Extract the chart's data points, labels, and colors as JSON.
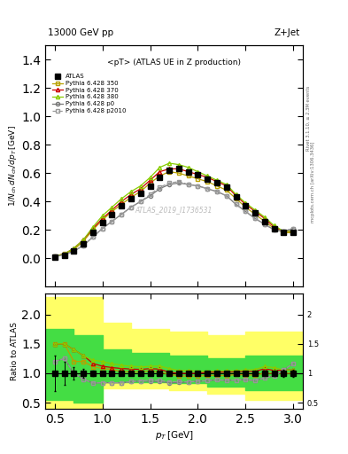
{
  "title_top": "13000 GeV pp",
  "title_right": "Z+Jet",
  "subplot_title": "<pT> (ATLAS UE in Z production)",
  "watermark": "ATLAS_2019_I1736531",
  "right_label_top": "Rivet 3.1.10, ≥ 2.3M events",
  "right_label_bottom": "mcplots.cern.ch [arXiv:1306.3436]",
  "ylabel_main": "1/N_{ch} dN_{ch}/dp_{T} [GeV]",
  "ylabel_ratio": "Ratio to ATLAS",
  "xlabel": "p_{T} [GeV]",
  "xlim": [
    0.4,
    3.1
  ],
  "ylim_main": [
    -0.2,
    1.5
  ],
  "ylim_ratio": [
    0.4,
    2.35
  ],
  "atlas_x": [
    0.5,
    0.6,
    0.7,
    0.8,
    0.9,
    1.0,
    1.1,
    1.2,
    1.3,
    1.4,
    1.5,
    1.6,
    1.7,
    1.8,
    1.9,
    2.0,
    2.1,
    2.2,
    2.3,
    2.4,
    2.5,
    2.6,
    2.7,
    2.8,
    2.9,
    3.0
  ],
  "atlas_y": [
    0.01,
    0.02,
    0.05,
    0.1,
    0.18,
    0.25,
    0.31,
    0.37,
    0.42,
    0.46,
    0.51,
    0.57,
    0.62,
    0.63,
    0.61,
    0.59,
    0.56,
    0.53,
    0.5,
    0.43,
    0.37,
    0.32,
    0.26,
    0.21,
    0.18,
    0.18
  ],
  "atlas_yerr": [
    0.003,
    0.004,
    0.005,
    0.007,
    0.008,
    0.009,
    0.01,
    0.01,
    0.01,
    0.01,
    0.01,
    0.01,
    0.01,
    0.01,
    0.01,
    0.01,
    0.01,
    0.01,
    0.01,
    0.01,
    0.01,
    0.01,
    0.01,
    0.01,
    0.01,
    0.01
  ],
  "p350_y": [
    0.015,
    0.03,
    0.06,
    0.12,
    0.2,
    0.27,
    0.33,
    0.38,
    0.43,
    0.47,
    0.53,
    0.58,
    0.61,
    0.6,
    0.58,
    0.56,
    0.54,
    0.51,
    0.48,
    0.42,
    0.36,
    0.31,
    0.26,
    0.21,
    0.18,
    0.18
  ],
  "p370_y": [
    0.015,
    0.03,
    0.07,
    0.13,
    0.21,
    0.28,
    0.34,
    0.4,
    0.45,
    0.49,
    0.55,
    0.61,
    0.63,
    0.63,
    0.61,
    0.59,
    0.57,
    0.54,
    0.51,
    0.44,
    0.38,
    0.33,
    0.28,
    0.22,
    0.19,
    0.19
  ],
  "p380_y": [
    0.015,
    0.03,
    0.07,
    0.13,
    0.22,
    0.3,
    0.36,
    0.42,
    0.47,
    0.51,
    0.57,
    0.64,
    0.67,
    0.66,
    0.64,
    0.61,
    0.58,
    0.55,
    0.52,
    0.45,
    0.39,
    0.34,
    0.29,
    0.23,
    0.19,
    0.19
  ],
  "p0_y": [
    0.012,
    0.025,
    0.05,
    0.09,
    0.15,
    0.21,
    0.26,
    0.31,
    0.36,
    0.4,
    0.44,
    0.49,
    0.52,
    0.53,
    0.52,
    0.51,
    0.49,
    0.47,
    0.44,
    0.38,
    0.33,
    0.28,
    0.24,
    0.2,
    0.19,
    0.21
  ],
  "p2010_y": [
    0.012,
    0.025,
    0.05,
    0.09,
    0.15,
    0.21,
    0.26,
    0.31,
    0.36,
    0.4,
    0.45,
    0.5,
    0.53,
    0.54,
    0.52,
    0.51,
    0.49,
    0.47,
    0.44,
    0.38,
    0.33,
    0.28,
    0.24,
    0.2,
    0.19,
    0.21
  ],
  "color_p350": "#b8a000",
  "color_p370": "#cc0000",
  "color_p380": "#88cc00",
  "color_p0": "#777777",
  "color_p2010": "#999999",
  "color_atlas": "#000000",
  "band_yellow_color": "#ffff66",
  "band_green_color": "#44dd44",
  "bx": [
    0.4,
    0.7,
    0.7,
    1.0,
    1.0,
    1.3,
    1.3,
    1.7,
    1.7,
    2.1,
    2.1,
    2.5,
    2.5,
    3.1
  ],
  "by_ylo": [
    0.3,
    0.3,
    0.25,
    0.25,
    0.75,
    0.75,
    0.75,
    0.75,
    0.72,
    0.72,
    0.65,
    0.65,
    0.55,
    0.55
  ],
  "by_yhi": [
    2.3,
    2.3,
    2.3,
    2.3,
    1.85,
    1.85,
    1.75,
    1.75,
    1.7,
    1.7,
    1.65,
    1.65,
    1.7,
    1.7
  ],
  "bg_ylo": [
    0.55,
    0.55,
    0.5,
    0.5,
    0.85,
    0.85,
    0.85,
    0.85,
    0.83,
    0.83,
    0.78,
    0.78,
    0.72,
    0.72
  ],
  "bg_yhi": [
    1.75,
    1.75,
    1.65,
    1.65,
    1.4,
    1.4,
    1.35,
    1.35,
    1.3,
    1.3,
    1.25,
    1.25,
    1.3,
    1.3
  ]
}
